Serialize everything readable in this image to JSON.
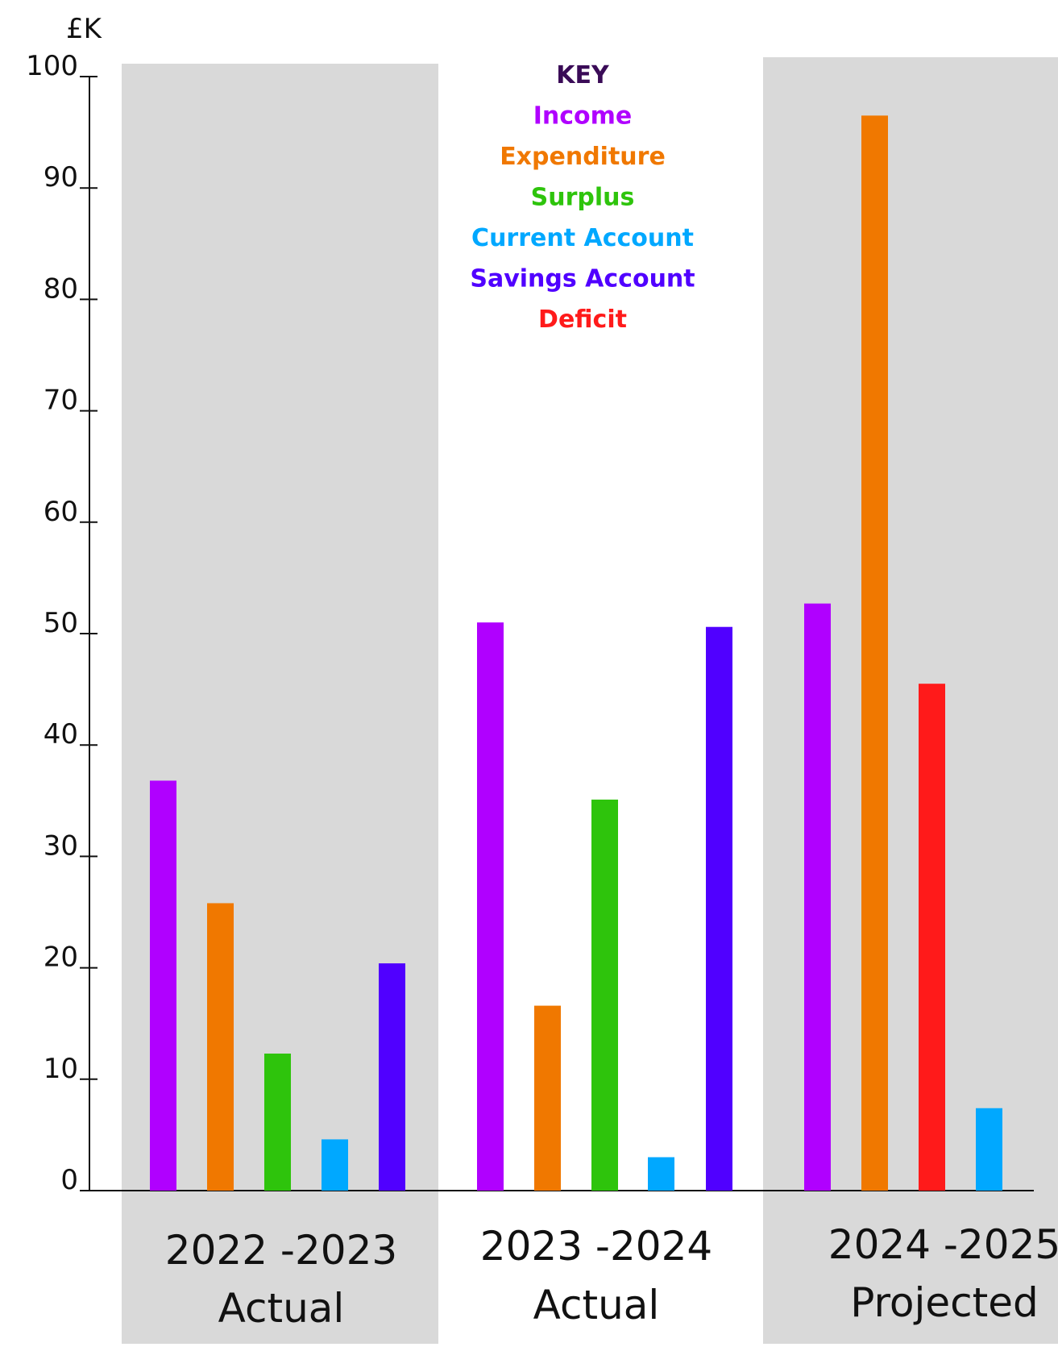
{
  "chart_data": {
    "type": "bar",
    "y_unit_label": "£K",
    "ylim": [
      0,
      100
    ],
    "y_ticks": [
      {
        "value": 0,
        "label": "0"
      },
      {
        "value": 10,
        "label": "10"
      },
      {
        "value": 20,
        "label": "20"
      },
      {
        "value": 30,
        "label": "30"
      },
      {
        "value": 40,
        "label": "40"
      },
      {
        "value": 50,
        "label": "50"
      },
      {
        "value": 60,
        "label": "60"
      },
      {
        "value": 70,
        "label": "70"
      },
      {
        "value": 80,
        "label": "80"
      },
      {
        "value": 90,
        "label": "90"
      },
      {
        "value": 100,
        "label": "100"
      }
    ],
    "legend": {
      "title": "KEY",
      "title_color": "#3a0b57",
      "placement": "top-center"
    },
    "series": [
      {
        "name": "Income",
        "color": "#b000ff"
      },
      {
        "name": "Expenditure",
        "color": "#f07800"
      },
      {
        "name": "Surplus",
        "color": "#2ec40c"
      },
      {
        "name": "Current Account",
        "color": "#00a8ff"
      },
      {
        "name": "Savings Account",
        "color": "#5000ff"
      },
      {
        "name": "Deficit",
        "color": "#ff1a1a"
      }
    ],
    "groups": [
      {
        "label_line1": "2022 -2023",
        "label_line2": "Actual",
        "shaded": true,
        "bars": [
          {
            "series": "Income",
            "value": 36.8
          },
          {
            "series": "Expenditure",
            "value": 25.8
          },
          {
            "series": "Surplus",
            "value": 12.3
          },
          {
            "series": "Current Account",
            "value": 4.6
          },
          {
            "series": "Savings Account",
            "value": 20.4
          }
        ]
      },
      {
        "label_line1": "2023 -2024",
        "label_line2": "Actual",
        "shaded": false,
        "bars": [
          {
            "series": "Income",
            "value": 51
          },
          {
            "series": "Expenditure",
            "value": 16.6
          },
          {
            "series": "Surplus",
            "value": 35.1
          },
          {
            "series": "Current Account",
            "value": 3
          },
          {
            "series": "Savings Account",
            "value": 50.6
          }
        ]
      },
      {
        "label_line1": "2024 -2025",
        "label_line2": "Projected",
        "shaded": true,
        "bars": [
          {
            "series": "Income",
            "value": 52.7
          },
          {
            "series": "Expenditure",
            "value": 96.5
          },
          {
            "series": "Deficit",
            "value": 45.5
          },
          {
            "series": "Current Account",
            "value": 7.4
          }
        ]
      }
    ]
  }
}
